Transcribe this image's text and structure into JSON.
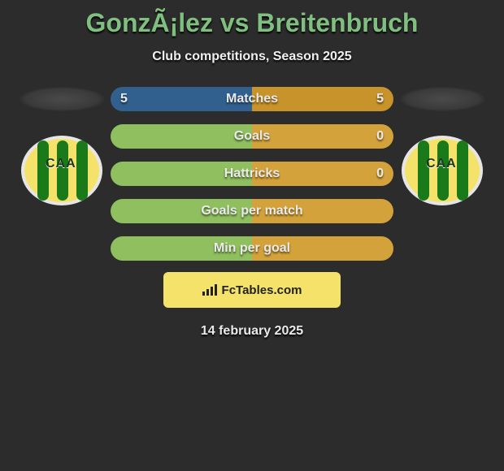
{
  "background_color": "#2c2c2c",
  "title": "GonzÃ¡lez vs Breitenbruch",
  "title_color": "#7fbf7f",
  "subtitle": "Club competitions, Season 2025",
  "date_text": "14 february 2025",
  "left_club": {
    "name": "CAA",
    "colors": {
      "bg": "#f5e26a",
      "stripe": "#1a7a1a"
    }
  },
  "right_club": {
    "name": "CAA",
    "colors": {
      "bg": "#f5e26a",
      "stripe": "#1a7a1a"
    }
  },
  "brand": {
    "text": "FcTables.com",
    "bg_color": "#f5e26a",
    "text_color": "#222222"
  },
  "bars": {
    "colors": {
      "player_left": "#31608f",
      "player_right": "#c7932a",
      "neutral_left": "#8fbf5f",
      "neutral_right": "#d4a23a"
    },
    "height": 30,
    "radius": 15,
    "items": [
      {
        "label": "Matches",
        "left_value": "5",
        "right_value": "5",
        "left_pct": 50,
        "right_pct": 50,
        "left_color": "#31608f",
        "right_color": "#c7932a"
      },
      {
        "label": "Goals",
        "left_value": "",
        "right_value": "0",
        "left_pct": 50,
        "right_pct": 50,
        "left_color": "#8fbf5f",
        "right_color": "#d4a23a"
      },
      {
        "label": "Hattricks",
        "left_value": "",
        "right_value": "0",
        "left_pct": 50,
        "right_pct": 50,
        "left_color": "#8fbf5f",
        "right_color": "#d4a23a"
      },
      {
        "label": "Goals per match",
        "left_value": "",
        "right_value": "",
        "left_pct": 50,
        "right_pct": 50,
        "left_color": "#8fbf5f",
        "right_color": "#d4a23a"
      },
      {
        "label": "Min per goal",
        "left_value": "",
        "right_value": "",
        "left_pct": 50,
        "right_pct": 50,
        "left_color": "#8fbf5f",
        "right_color": "#d4a23a"
      }
    ]
  }
}
